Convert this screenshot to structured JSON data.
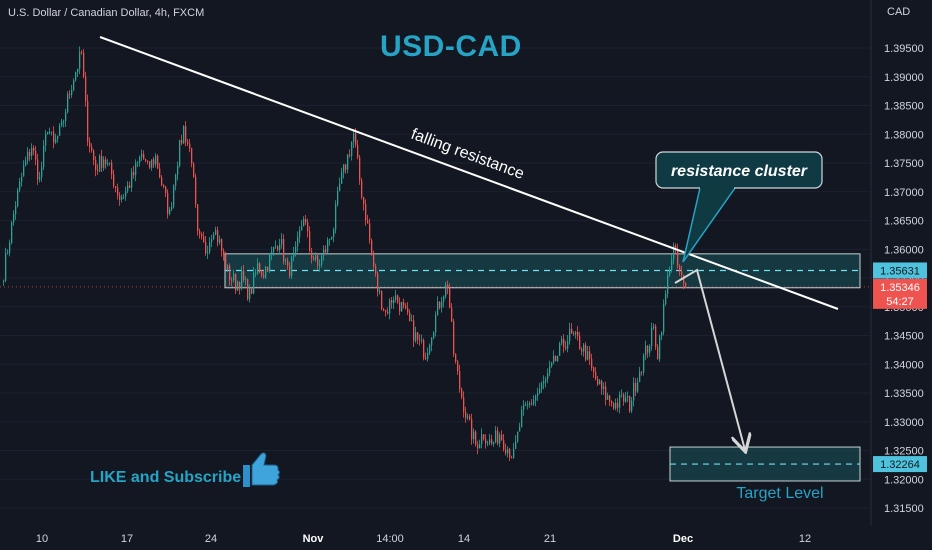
{
  "header": {
    "symbol_line": "U.S. Dollar / Canadian Dollar, 4h, FXCM",
    "currency": "CAD"
  },
  "title": "USD-CAD",
  "colors": {
    "background": "#131722",
    "up": "#26a69a",
    "down": "#ef5350",
    "accent": "#26a4c5",
    "text": "#d1d4dc",
    "zone": "#19535a"
  },
  "chart_data": {
    "type": "candlestick",
    "title": "USD-CAD",
    "ylim": [
      1.3115,
      1.3985
    ],
    "y_ticks": [
      "1.39500",
      "1.39000",
      "1.38500",
      "1.38000",
      "1.37500",
      "1.37000",
      "1.36500",
      "1.36000",
      "1.35500",
      "1.35000",
      "1.34500",
      "1.34000",
      "1.33500",
      "1.33000",
      "1.32500",
      "1.32000",
      "1.31500"
    ],
    "x_ticks": [
      "10",
      "17",
      "24",
      "Nov",
      "14:00",
      "14",
      "21",
      "Dec",
      "12"
    ],
    "series_anchor_closes": [
      [
        0,
        1.356
      ],
      [
        6,
        1.368
      ],
      [
        10,
        1.374
      ],
      [
        14,
        1.378
      ],
      [
        18,
        1.372
      ],
      [
        22,
        1.3815
      ],
      [
        25,
        1.378
      ],
      [
        29,
        1.381
      ],
      [
        32,
        1.386
      ],
      [
        35,
        1.39
      ],
      [
        39,
        1.394
      ],
      [
        42,
        1.38
      ],
      [
        46,
        1.374
      ],
      [
        50,
        1.376
      ],
      [
        54,
        1.373
      ],
      [
        58,
        1.369
      ],
      [
        61,
        1.37
      ],
      [
        65,
        1.373
      ],
      [
        69,
        1.3765
      ],
      [
        72,
        1.374
      ],
      [
        76,
        1.376
      ],
      [
        80,
        1.37
      ],
      [
        83,
        1.366
      ],
      [
        86,
        1.374
      ],
      [
        90,
        1.381
      ],
      [
        94,
        1.376
      ],
      [
        97,
        1.362
      ],
      [
        101,
        1.36
      ],
      [
        105,
        1.364
      ],
      [
        108,
        1.361
      ],
      [
        112,
        1.356
      ],
      [
        116,
        1.354
      ],
      [
        119,
        1.355
      ],
      [
        123,
        1.352
      ],
      [
        127,
        1.357
      ],
      [
        130,
        1.356
      ],
      [
        134,
        1.359
      ],
      [
        138,
        1.362
      ],
      [
        142,
        1.356
      ],
      [
        146,
        1.359
      ],
      [
        150,
        1.366
      ],
      [
        153,
        1.36
      ],
      [
        157,
        1.357
      ],
      [
        161,
        1.36
      ],
      [
        165,
        1.364
      ],
      [
        168,
        1.371
      ],
      [
        172,
        1.376
      ],
      [
        175,
        1.38
      ],
      [
        178,
        1.372
      ],
      [
        182,
        1.364
      ],
      [
        184,
        1.359
      ],
      [
        187,
        1.353
      ],
      [
        191,
        1.349
      ],
      [
        195,
        1.352
      ],
      [
        199,
        1.35
      ],
      [
        203,
        1.347
      ],
      [
        207,
        1.344
      ],
      [
        211,
        1.342
      ],
      [
        215,
        1.347
      ],
      [
        219,
        1.352
      ],
      [
        222,
        1.354
      ],
      [
        225,
        1.342
      ],
      [
        228,
        1.336
      ],
      [
        232,
        1.33
      ],
      [
        236,
        1.326
      ],
      [
        240,
        1.328
      ],
      [
        244,
        1.326
      ],
      [
        248,
        1.328
      ],
      [
        251,
        1.326
      ],
      [
        255,
        1.324
      ],
      [
        259,
        1.331
      ],
      [
        263,
        1.333
      ],
      [
        267,
        1.335
      ],
      [
        271,
        1.337
      ],
      [
        275,
        1.34
      ],
      [
        279,
        1.343
      ],
      [
        283,
        1.345
      ],
      [
        287,
        1.344
      ],
      [
        291,
        1.342
      ],
      [
        295,
        1.338
      ],
      [
        298,
        1.336
      ],
      [
        302,
        1.334
      ],
      [
        306,
        1.333
      ],
      [
        310,
        1.334
      ],
      [
        313,
        1.333
      ],
      [
        317,
        1.338
      ],
      [
        321,
        1.342
      ],
      [
        325,
        1.346
      ],
      [
        327,
        1.342
      ],
      [
        331,
        1.352
      ],
      [
        333,
        1.3575
      ],
      [
        335,
        1.36
      ],
      [
        337,
        1.357
      ],
      [
        340,
        1.3535
      ]
    ],
    "last_price": "1.35346",
    "countdown": "54:27"
  },
  "labels": {
    "trendline": "falling resistance",
    "callout": "resistance cluster",
    "zone_price": "1.35631",
    "target_price": "1.32264",
    "target": "Target Level",
    "cta": "LIKE and Subscribe"
  }
}
